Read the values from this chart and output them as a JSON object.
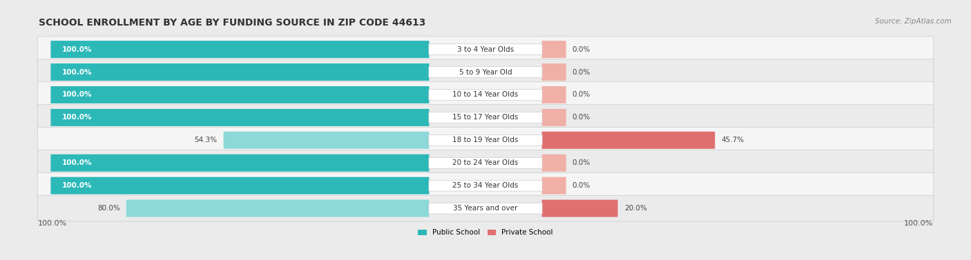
{
  "title": "SCHOOL ENROLLMENT BY AGE BY FUNDING SOURCE IN ZIP CODE 44613",
  "source": "Source: ZipAtlas.com",
  "categories": [
    "3 to 4 Year Olds",
    "5 to 9 Year Old",
    "10 to 14 Year Olds",
    "15 to 17 Year Olds",
    "18 to 19 Year Olds",
    "20 to 24 Year Olds",
    "25 to 34 Year Olds",
    "35 Years and over"
  ],
  "public_values": [
    100.0,
    100.0,
    100.0,
    100.0,
    54.3,
    100.0,
    100.0,
    80.0
  ],
  "private_values": [
    0.0,
    0.0,
    0.0,
    0.0,
    45.7,
    0.0,
    0.0,
    20.0
  ],
  "public_color_full": "#2db8b8",
  "public_color_partial": "#8dd8d8",
  "private_color_full": "#e07070",
  "private_color_partial": "#f0b0a8",
  "bg_color": "#ebebeb",
  "row_bg_even": "#f5f5f5",
  "row_bg_odd": "#ebebeb",
  "label_text_color": "#444444",
  "bar_label_white": "#ffffff",
  "bar_label_dark": "#444444",
  "axis_label_left": "100.0%",
  "axis_label_right": "100.0%",
  "legend_public": "Public School",
  "legend_private": "Private School",
  "title_fontsize": 10,
  "source_fontsize": 7.5,
  "bar_label_fontsize": 7.5,
  "category_fontsize": 7.5,
  "axis_label_fontsize": 8
}
